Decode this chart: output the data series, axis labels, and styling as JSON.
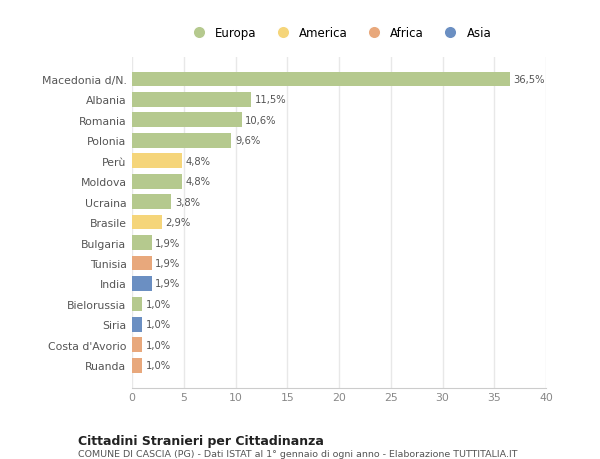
{
  "countries": [
    "Macedonia d/N.",
    "Albania",
    "Romania",
    "Polonia",
    "Perù",
    "Moldova",
    "Ucraina",
    "Brasile",
    "Bulgaria",
    "Tunisia",
    "India",
    "Bielorussia",
    "Siria",
    "Costa d'Avorio",
    "Ruanda"
  ],
  "values": [
    36.5,
    11.5,
    10.6,
    9.6,
    4.8,
    4.8,
    3.8,
    2.9,
    1.9,
    1.9,
    1.9,
    1.0,
    1.0,
    1.0,
    1.0
  ],
  "labels": [
    "36,5%",
    "11,5%",
    "10,6%",
    "9,6%",
    "4,8%",
    "4,8%",
    "3,8%",
    "2,9%",
    "1,9%",
    "1,9%",
    "1,9%",
    "1,0%",
    "1,0%",
    "1,0%",
    "1,0%"
  ],
  "continents": [
    "Europa",
    "Europa",
    "Europa",
    "Europa",
    "America",
    "Europa",
    "Europa",
    "America",
    "Europa",
    "Africa",
    "Asia",
    "Europa",
    "Asia",
    "Africa",
    "Africa"
  ],
  "continent_colors": {
    "Europa": "#b5c98e",
    "America": "#f5d57a",
    "Africa": "#e8a87c",
    "Asia": "#6b8fc2"
  },
  "legend_order": [
    "Europa",
    "America",
    "Africa",
    "Asia"
  ],
  "xlim": [
    0,
    40
  ],
  "xticks": [
    0,
    5,
    10,
    15,
    20,
    25,
    30,
    35,
    40
  ],
  "title": "Cittadini Stranieri per Cittadinanza",
  "subtitle": "COMUNE DI CASCIA (PG) - Dati ISTAT al 1° gennaio di ogni anno - Elaborazione TUTTITALIA.IT",
  "bg_color": "#ffffff",
  "grid_color": "#e8e8e8",
  "bar_height": 0.72
}
